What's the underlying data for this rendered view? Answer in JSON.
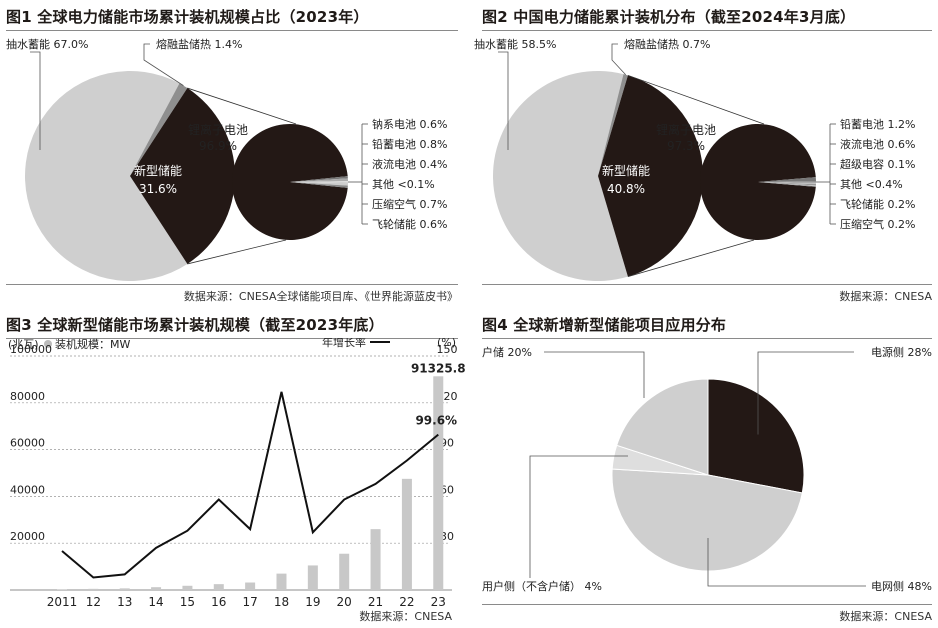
{
  "chart_data": [
    {
      "type": "pie",
      "title": "图1 全球电力储能市场累计装机规模占比（2023年）",
      "slices": [
        {
          "label": "抽水蓄能",
          "value": 67.0,
          "display": "67.0%",
          "color": "#cfcfcf"
        },
        {
          "label": "熔融盐储热",
          "value": 1.4,
          "display": "1.4%",
          "color": "#8f8f8f"
        },
        {
          "label": "新型储能",
          "value": 31.6,
          "display": "31.6%",
          "color": "#231815"
        }
      ],
      "breakdown_of": "新型储能",
      "breakdown": [
        {
          "label": "锂离子电池",
          "value": 96.9,
          "display": "96.9%"
        },
        {
          "label": "钠系电池",
          "value": 0.6,
          "display": "0.6%"
        },
        {
          "label": "铅蓄电池",
          "value": 0.8,
          "display": "0.8%"
        },
        {
          "label": "液流电池",
          "value": 0.4,
          "display": "0.4%"
        },
        {
          "label": "其他",
          "value": 0.1,
          "display": "<0.1%"
        },
        {
          "label": "压缩空气",
          "value": 0.7,
          "display": "0.7%"
        },
        {
          "label": "飞轮储能",
          "value": 0.6,
          "display": "0.6%"
        }
      ],
      "source": "数据来源：CNESA全球储能项目库、《世界能源蓝皮书》"
    },
    {
      "type": "pie",
      "title": "图2 中国电力储能累计装机分布（截至2024年3月底）",
      "slices": [
        {
          "label": "抽水蓄能",
          "value": 58.5,
          "display": "58.5%",
          "color": "#cfcfcf"
        },
        {
          "label": "熔融盐储热",
          "value": 0.7,
          "display": "0.7%",
          "color": "#8f8f8f"
        },
        {
          "label": "新型储能",
          "value": 40.8,
          "display": "40.8%",
          "color": "#231815"
        }
      ],
      "breakdown_of": "新型储能",
      "breakdown": [
        {
          "label": "锂离子电池",
          "value": 97.3,
          "display": "97.3%"
        },
        {
          "label": "铅蓄电池",
          "value": 1.2,
          "display": "1.2%"
        },
        {
          "label": "液流电池",
          "value": 0.6,
          "display": "0.6%"
        },
        {
          "label": "超级电容",
          "value": 0.1,
          "display": "0.1%"
        },
        {
          "label": "其他",
          "value": 0.4,
          "display": "<0.4%"
        },
        {
          "label": "飞轮储能",
          "value": 0.2,
          "display": "0.2%"
        },
        {
          "label": "压缩空气",
          "value": 0.2,
          "display": "0.2%"
        }
      ],
      "source": "数据来源：CNESA"
    },
    {
      "type": "bar",
      "title": "图3 全球新型储能市场累计装机规模（截至2023年底）",
      "categories": [
        "2011",
        "12",
        "13",
        "14",
        "15",
        "16",
        "17",
        "18",
        "19",
        "20",
        "21",
        "22",
        "23"
      ],
      "series": [
        {
          "name": "装机规模：MW",
          "type": "bar",
          "axis": "left",
          "values": [
            300,
            500,
            700,
            1200,
            1800,
            2500,
            3200,
            7000,
            10500,
            15500,
            26000,
            47500,
            91325.8
          ]
        },
        {
          "name": "年增长率",
          "type": "line",
          "axis": "right",
          "values": [
            25,
            8,
            10,
            27,
            38,
            58,
            39,
            127,
            37,
            58,
            68,
            83,
            99.6
          ]
        }
      ],
      "labels": {
        "last_bar": "91325.8",
        "last_rate": "99.6%"
      },
      "yleft_unit": "(兆瓦)",
      "yright_unit": "(%)",
      "legend_bar": "装机规模：MW",
      "legend_line": "年增长率",
      "yleft_ticks": [
        "20000",
        "40000",
        "60000",
        "80000",
        "100000"
      ],
      "yright_ticks": [
        "30",
        "60",
        "90",
        "120",
        "150"
      ],
      "ylim_left": [
        0,
        100000
      ],
      "ylim_right": [
        0,
        150
      ],
      "source": "数据来源：CNESA"
    },
    {
      "type": "pie",
      "title": "图4 全球新增新型储能项目应用分布",
      "slices": [
        {
          "label": "电源侧",
          "value": 28,
          "display": "28%",
          "color": "#231815"
        },
        {
          "label": "电网侧",
          "value": 48,
          "display": "48%",
          "color": "#cfcfcf"
        },
        {
          "label": "用户侧（不含户储）",
          "value": 4,
          "display": "4%",
          "color": "#dedede"
        },
        {
          "label": "户储",
          "value": 20,
          "display": "20%",
          "color": "#cfcfcf"
        }
      ],
      "source": "数据来源：CNESA"
    }
  ]
}
